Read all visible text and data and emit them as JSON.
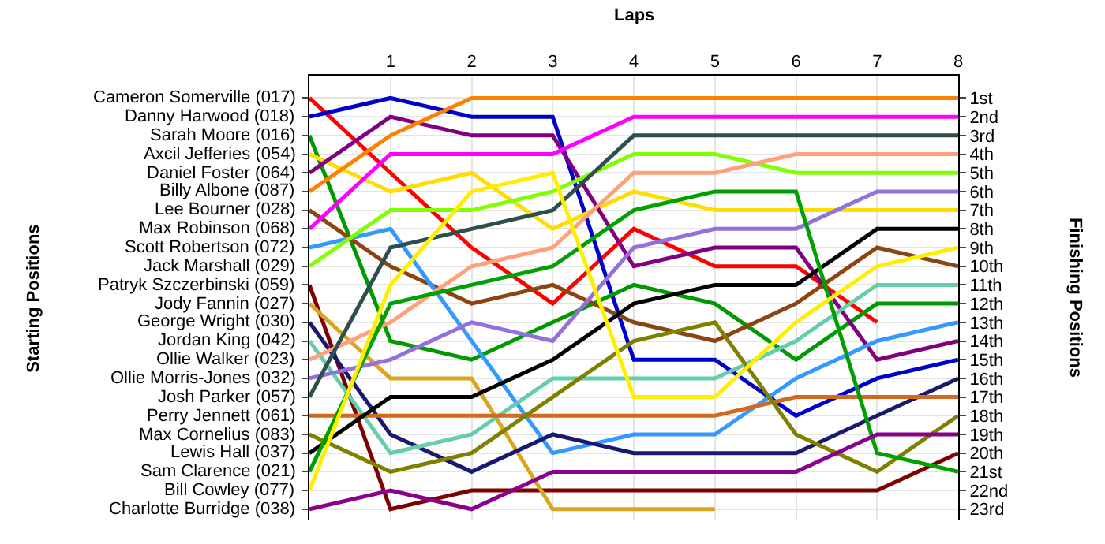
{
  "chart_data": {
    "type": "line",
    "xlabel": "Laps",
    "ylabel": "Finishing Positions",
    "annotations": [
      "Starting Positions"
    ],
    "x": [
      0,
      1,
      2,
      3,
      4,
      5,
      6,
      7,
      8
    ],
    "xlim": [
      0,
      8
    ],
    "xticks": [
      1,
      2,
      3,
      4,
      5,
      6,
      7,
      8
    ],
    "ylim": [
      23.6,
      -0.2
    ],
    "yticks": [
      {
        "value": 1,
        "label": "1st"
      },
      {
        "value": 2,
        "label": "2nd"
      },
      {
        "value": 3,
        "label": "3rd"
      },
      {
        "value": 4,
        "label": "4th"
      },
      {
        "value": 5,
        "label": "5th"
      },
      {
        "value": 6,
        "label": "6th"
      },
      {
        "value": 7,
        "label": "7th"
      },
      {
        "value": 8,
        "label": "8th"
      },
      {
        "value": 9,
        "label": "9th"
      },
      {
        "value": 10,
        "label": "10th"
      },
      {
        "value": 11,
        "label": "11th"
      },
      {
        "value": 12,
        "label": "12th"
      },
      {
        "value": 13,
        "label": "13th"
      },
      {
        "value": 14,
        "label": "14th"
      },
      {
        "value": 15,
        "label": "15th"
      },
      {
        "value": 16,
        "label": "16th"
      },
      {
        "value": 17,
        "label": "17th"
      },
      {
        "value": 18,
        "label": "18th"
      },
      {
        "value": 19,
        "label": "19th"
      },
      {
        "value": 20,
        "label": "20th"
      },
      {
        "value": 21,
        "label": "21st"
      },
      {
        "value": 22,
        "label": "22nd"
      },
      {
        "value": 23,
        "label": "23rd"
      }
    ],
    "grid": true,
    "legend": false,
    "marker": "none",
    "line_style": "solid",
    "series": [
      {
        "name": "Cameron Somerville (017)",
        "color": "#ff0000",
        "values": [
          1,
          5,
          9,
          12,
          8,
          10,
          10,
          13,
          null
        ]
      },
      {
        "name": "Danny Harwood (018)",
        "color": "#0000cc",
        "values": [
          2,
          1,
          2,
          2,
          15,
          15,
          18,
          16,
          15
        ]
      },
      {
        "name": "Sarah Moore (016)",
        "color": "#009900",
        "values": [
          3,
          14,
          15,
          13,
          11,
          12,
          15,
          12,
          12
        ]
      },
      {
        "name": "Axcil Jefferies (054)",
        "color": "#ffdd00",
        "values": [
          4,
          6,
          5,
          8,
          6,
          7,
          7,
          7,
          7
        ]
      },
      {
        "name": "Daniel Foster (064)",
        "color": "#800080",
        "values": [
          5,
          2,
          3,
          3,
          10,
          9,
          9,
          15,
          14
        ]
      },
      {
        "name": "Billy Albone (087)",
        "color": "#ff8000",
        "values": [
          6,
          3,
          1,
          1,
          1,
          1,
          1,
          1,
          1
        ]
      },
      {
        "name": "Lee Bourner (028)",
        "color": "#8b4513",
        "values": [
          7,
          10,
          12,
          11,
          13,
          14,
          12,
          9,
          10
        ]
      },
      {
        "name": "Max Robinson (068)",
        "color": "#ff00ff",
        "values": [
          8,
          4,
          4,
          4,
          2,
          2,
          2,
          2,
          2
        ]
      },
      {
        "name": "Scott Robertson (072)",
        "color": "#3399ff",
        "values": [
          9,
          8,
          14,
          20,
          19,
          19,
          16,
          14,
          13
        ]
      },
      {
        "name": "Jack Marshall (029)",
        "color": "#80ff00",
        "values": [
          10,
          7,
          7,
          6,
          4,
          4,
          5,
          5,
          5
        ]
      },
      {
        "name": "Patryk Szczerbinski (059)",
        "color": "#800000",
        "values": [
          11,
          23,
          22,
          22,
          22,
          22,
          22,
          22,
          20
        ]
      },
      {
        "name": "Jody Fannin (027)",
        "color": "#daa520",
        "values": [
          12,
          16,
          16,
          23,
          23,
          23,
          null,
          null,
          null
        ]
      },
      {
        "name": "George Wright (030)",
        "color": "#191970",
        "values": [
          13,
          19,
          21,
          19,
          20,
          20,
          20,
          18,
          16
        ]
      },
      {
        "name": "Jordan King (042)",
        "color": "#66cdaa",
        "values": [
          14,
          20,
          19,
          16,
          16,
          16,
          14,
          11,
          11
        ]
      },
      {
        "name": "Ollie Walker (023)",
        "color": "#ffa07a",
        "values": [
          15,
          13,
          10,
          9,
          5,
          5,
          4,
          4,
          4
        ]
      },
      {
        "name": "Ollie Morris-Jones (032)",
        "color": "#9370db",
        "values": [
          16,
          15,
          13,
          14,
          9,
          8,
          8,
          6,
          6
        ]
      },
      {
        "name": "Josh Parker (057)",
        "color": "#2f4f4f",
        "values": [
          17,
          9,
          8,
          7,
          3,
          3,
          3,
          3,
          3
        ]
      },
      {
        "name": "Perry Jennett (061)",
        "color": "#d2691e",
        "values": [
          18,
          18,
          18,
          18,
          18,
          18,
          17,
          17,
          17
        ]
      },
      {
        "name": "Max Cornelius (083)",
        "color": "#808000",
        "values": [
          19,
          21,
          20,
          17,
          14,
          13,
          19,
          21,
          18
        ]
      },
      {
        "name": "Lewis Hall (037)",
        "color": "#000000",
        "values": [
          20,
          17,
          17,
          15,
          12,
          11,
          11,
          8,
          8
        ]
      },
      {
        "name": "Sam Clarence (021)",
        "color": "#00a000",
        "values": [
          21,
          12,
          11,
          10,
          7,
          6,
          6,
          20,
          21
        ]
      },
      {
        "name": "Bill Cowley (077)",
        "color": "#ffee00",
        "values": [
          22,
          11,
          6,
          5,
          17,
          17,
          13,
          10,
          9
        ]
      },
      {
        "name": "Charlotte Burridge (038)",
        "color": "#8b008b",
        "values": [
          23,
          22,
          23,
          21,
          21,
          21,
          21,
          19,
          19
        ]
      }
    ]
  }
}
